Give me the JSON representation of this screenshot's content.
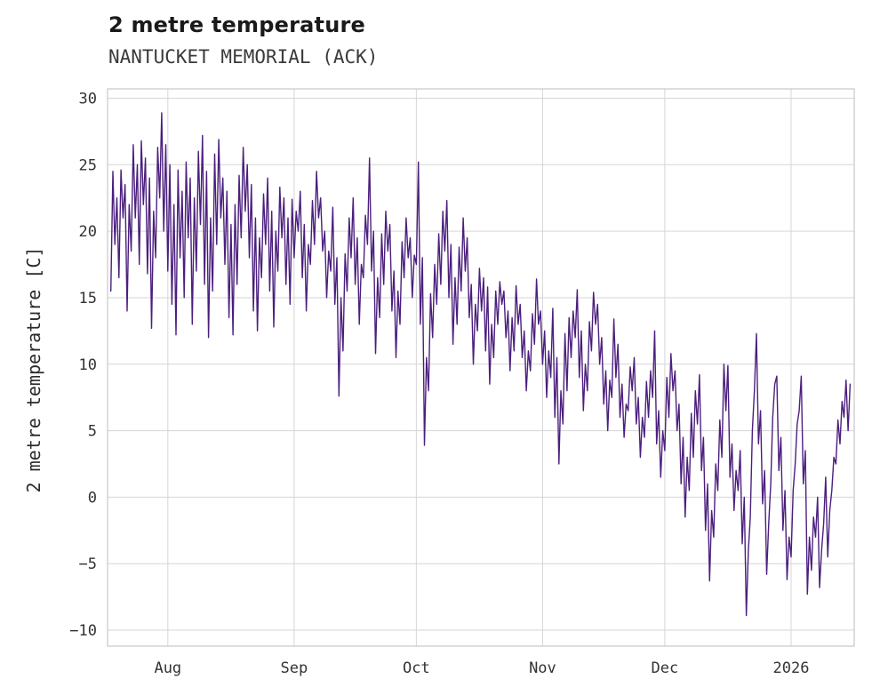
{
  "header": {
    "title": "2 metre temperature",
    "subtitle": "NANTUCKET MEMORIAL (ACK)"
  },
  "chart_data": {
    "type": "line",
    "title": "2 metre temperature",
    "subtitle": "NANTUCKET MEMORIAL (ACK)",
    "xlabel": "",
    "ylabel": "2 metre temperature [C]",
    "line_color": "#4b1f7d",
    "grid_color": "#d6d6d6",
    "spine_color": "#c9c9c9",
    "text_color": "#333333",
    "grid": true,
    "legend": false,
    "ylim": [
      -11.2,
      30.7
    ],
    "xlim": [
      -0.8,
      182.5
    ],
    "y_ticks": [
      -10,
      -5,
      0,
      5,
      10,
      15,
      20,
      25,
      30
    ],
    "x_ticks": [
      {
        "label": "Aug",
        "x": 14
      },
      {
        "label": "Sep",
        "x": 45
      },
      {
        "label": "Oct",
        "x": 75
      },
      {
        "label": "Nov",
        "x": 106
      },
      {
        "label": "Dec",
        "x": 136
      },
      {
        "label": "2026",
        "x": 167
      }
    ],
    "x_start": 0,
    "x_step": 0.5,
    "values": [
      15.5,
      24.5,
      19.0,
      22.5,
      16.5,
      24.6,
      21.0,
      23.5,
      14.0,
      22.0,
      18.5,
      26.5,
      21.0,
      25.0,
      17.5,
      26.8,
      22.0,
      25.5,
      16.8,
      24.0,
      12.7,
      21.5,
      18.0,
      26.3,
      22.5,
      28.9,
      20.0,
      26.5,
      17.0,
      25.0,
      14.5,
      22.0,
      12.2,
      24.6,
      18.0,
      23.0,
      15.0,
      25.2,
      19.5,
      24.0,
      13.0,
      22.5,
      17.0,
      26.0,
      20.5,
      27.2,
      16.0,
      24.5,
      12.0,
      21.0,
      15.5,
      25.8,
      19.0,
      26.9,
      21.0,
      24.0,
      17.5,
      23.0,
      13.5,
      20.5,
      12.2,
      22.0,
      16.0,
      24.2,
      19.5,
      26.3,
      21.5,
      25.0,
      18.0,
      23.5,
      14.0,
      21.0,
      12.5,
      19.5,
      16.5,
      22.8,
      19.0,
      24.0,
      15.5,
      21.5,
      12.8,
      20.0,
      17.0,
      23.3,
      19.5,
      22.5,
      16.0,
      21.0,
      14.5,
      22.4,
      18.0,
      21.5,
      20.0,
      23.0,
      16.5,
      20.5,
      14.0,
      19.0,
      17.5,
      22.3,
      19.0,
      24.5,
      21.0,
      22.5,
      18.5,
      20.0,
      15.0,
      18.5,
      17.0,
      21.8,
      14.5,
      18.0,
      7.6,
      15.0,
      11.0,
      18.3,
      15.5,
      21.0,
      18.0,
      22.5,
      16.0,
      19.5,
      13.0,
      17.5,
      16.5,
      21.2,
      19.0,
      25.5,
      17.0,
      20.0,
      10.8,
      16.5,
      13.5,
      19.8,
      16.0,
      21.5,
      18.5,
      20.5,
      14.0,
      17.0,
      10.5,
      15.5,
      13.0,
      19.2,
      16.5,
      21.0,
      18.0,
      19.5,
      15.0,
      18.2,
      17.5,
      25.2,
      13.0,
      18.0,
      3.9,
      10.5,
      8.0,
      15.3,
      12.0,
      17.5,
      14.5,
      19.8,
      16.0,
      21.5,
      18.5,
      22.3,
      15.0,
      19.0,
      11.5,
      16.5,
      13.0,
      18.8,
      15.5,
      21.0,
      17.0,
      19.5,
      13.5,
      16.0,
      10.0,
      14.5,
      12.5,
      17.2,
      14.0,
      16.5,
      11.0,
      15.8,
      8.5,
      13.0,
      10.5,
      15.5,
      13.0,
      16.2,
      14.5,
      15.5,
      12.0,
      14.0,
      9.5,
      13.5,
      11.0,
      15.9,
      13.0,
      14.5,
      10.5,
      12.5,
      8.0,
      11.0,
      9.5,
      13.8,
      11.5,
      16.4,
      13.0,
      14.0,
      10.0,
      12.5,
      7.5,
      11.0,
      9.0,
      14.2,
      6.0,
      10.5,
      2.5,
      8.0,
      5.5,
      12.3,
      8.0,
      13.5,
      10.5,
      14.0,
      12.0,
      15.6,
      9.0,
      12.5,
      6.5,
      10.0,
      8.0,
      13.2,
      11.0,
      15.4,
      13.0,
      14.5,
      10.0,
      12.0,
      7.0,
      9.5,
      5.0,
      8.8,
      7.5,
      13.4,
      9.0,
      11.5,
      6.0,
      8.5,
      4.5,
      7.0,
      6.5,
      9.8,
      8.0,
      10.5,
      5.5,
      7.5,
      3.0,
      6.0,
      4.5,
      8.7,
      6.0,
      9.5,
      7.5,
      12.5,
      4.0,
      6.5,
      1.5,
      5.0,
      3.5,
      9.0,
      6.0,
      10.8,
      8.0,
      9.5,
      5.0,
      7.0,
      1.0,
      4.5,
      -1.5,
      3.0,
      0.5,
      6.3,
      3.0,
      8.0,
      5.5,
      9.2,
      2.0,
      4.5,
      -2.5,
      1.0,
      -6.3,
      -1.0,
      -3.0,
      2.5,
      0.5,
      5.8,
      3.0,
      10.0,
      6.5,
      9.9,
      1.5,
      4.0,
      -1.0,
      2.0,
      0.5,
      3.5,
      -3.5,
      0.0,
      -8.9,
      -4.0,
      -1.5,
      5.0,
      8.0,
      12.3,
      4.0,
      6.5,
      -0.5,
      2.0,
      -5.8,
      -2.0,
      1.0,
      6.0,
      8.5,
      9.1,
      2.0,
      4.5,
      -2.5,
      0.5,
      -6.2,
      -3.0,
      -4.5,
      0.5,
      2.5,
      5.5,
      6.5,
      9.1,
      1.0,
      3.5,
      -7.3,
      -3.0,
      -5.5,
      -1.5,
      -3.0,
      0.0,
      -6.8,
      -4.0,
      -2.0,
      1.5,
      -4.5,
      -1.0,
      0.5,
      3.0,
      2.5,
      5.8,
      4.0,
      7.2,
      6.0,
      8.8,
      5.0,
      8.5
    ]
  }
}
